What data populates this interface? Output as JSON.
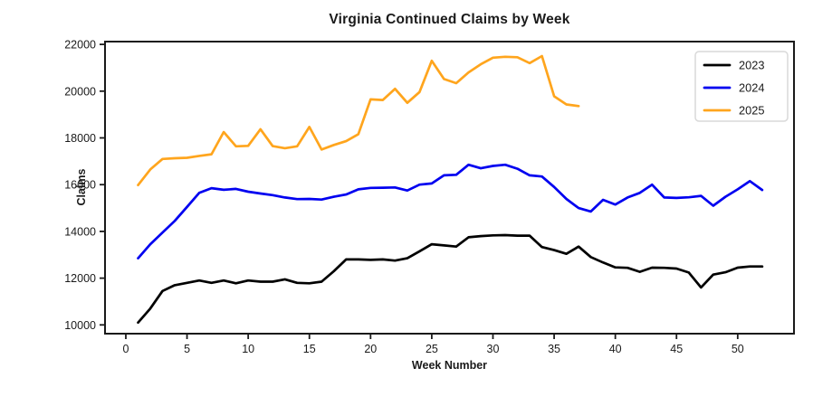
{
  "page": {
    "background": "#ffffff"
  },
  "chart_data": {
    "type": "line",
    "title": "Virginia Continued Claims by Week",
    "xlabel": "Week Number",
    "ylabel": "Claims",
    "x_ticks": [
      0,
      5,
      10,
      15,
      20,
      25,
      30,
      35,
      40,
      45,
      50
    ],
    "y_ticks": [
      10000,
      12000,
      14000,
      16000,
      18000,
      20000,
      22000
    ],
    "xlim": [
      -1.7,
      54.6
    ],
    "ylim": [
      9625,
      22120
    ],
    "grid": false,
    "legend_position": "upper right",
    "axis_color": "#1a1a1a",
    "series": [
      {
        "name": "2023",
        "color": "#000000",
        "start_week": 1,
        "values": [
          10100,
          10700,
          11450,
          11700,
          11800,
          11900,
          11800,
          11900,
          11780,
          11900,
          11850,
          11850,
          11950,
          11800,
          11780,
          11850,
          12300,
          12800,
          12800,
          12780,
          12800,
          12750,
          12850,
          13150,
          13450,
          13400,
          13350,
          13750,
          13800,
          13830,
          13840,
          13820,
          13820,
          13330,
          13200,
          13040,
          13350,
          12900,
          12670,
          12460,
          12440,
          12270,
          12450,
          12440,
          12410,
          12240,
          11600,
          12150,
          12250,
          12450,
          12500,
          12500
        ]
      },
      {
        "name": "2024",
        "color": "#0000f0",
        "start_week": 1,
        "values": [
          12850,
          13450,
          13950,
          14450,
          15050,
          15650,
          15850,
          15780,
          15820,
          15700,
          15620,
          15550,
          15450,
          15380,
          15390,
          15360,
          15480,
          15580,
          15800,
          15860,
          15870,
          15880,
          15750,
          16000,
          16050,
          16400,
          16420,
          16850,
          16700,
          16800,
          16850,
          16680,
          16400,
          16350,
          15900,
          15390,
          15000,
          14850,
          15350,
          15150,
          15450,
          15650,
          16000,
          15450,
          15430,
          15460,
          15520,
          15100,
          15480,
          15800,
          16150,
          15770
        ]
      },
      {
        "name": "2025",
        "color": "#ffa51d",
        "start_week": 1,
        "values": [
          15980,
          16650,
          17100,
          17130,
          17150,
          17230,
          17300,
          18250,
          17640,
          17660,
          18370,
          17650,
          17560,
          17640,
          18470,
          17500,
          17700,
          17860,
          18160,
          19650,
          19620,
          20100,
          19500,
          19960,
          21300,
          20520,
          20340,
          20800,
          21150,
          21430,
          21470,
          21450,
          21200,
          21500,
          19780,
          19430,
          19360
        ]
      }
    ],
    "legend_entries": [
      "2023",
      "2024",
      "2025"
    ]
  }
}
